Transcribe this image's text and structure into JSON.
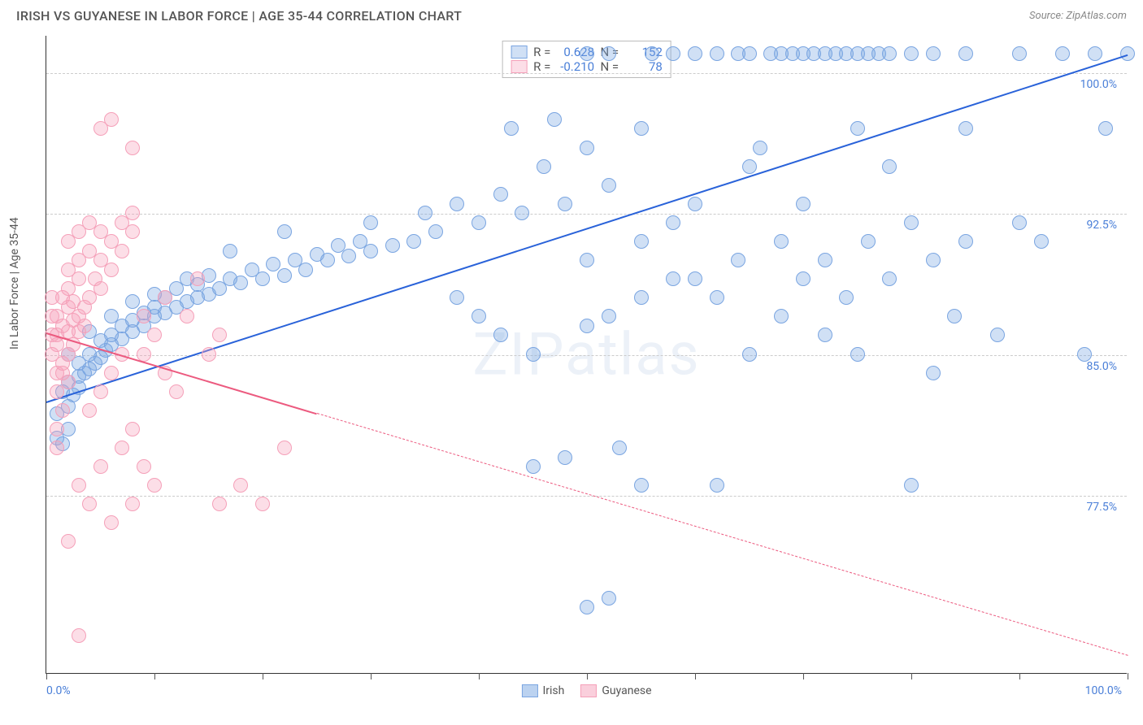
{
  "header": {
    "title": "IRISH VS GUYANESE IN LABOR FORCE | AGE 35-44 CORRELATION CHART",
    "source": "Source: ZipAtlas.com"
  },
  "watermark": "ZIPatlas",
  "ylabel": "In Labor Force | Age 35-44",
  "chart": {
    "type": "scatter",
    "xlim": [
      0,
      100
    ],
    "ylim": [
      68,
      102
    ],
    "ytick_labels": [
      "100.0%",
      "92.5%",
      "85.0%",
      "77.5%"
    ],
    "ytick_values": [
      100,
      92.5,
      85,
      77.5
    ],
    "xtick_values": [
      0,
      10,
      20,
      30,
      40,
      50,
      60,
      70,
      80,
      90,
      100
    ],
    "x_min_label": "0.0%",
    "x_max_label": "100.0%",
    "series": [
      {
        "name": "Irish",
        "color_fill": "rgba(120, 165, 225, 0.35)",
        "color_stroke": "#7aa5e1",
        "line_color": "#2962d9",
        "r_value": "0.628",
        "n_value": "152",
        "trend": {
          "x1": 0,
          "y1": 82.5,
          "x2": 100,
          "y2": 101,
          "dash_from": 100
        },
        "points": [
          [
            1,
            80.5
          ],
          [
            1.5,
            80.2
          ],
          [
            2,
            81
          ],
          [
            1,
            81.8
          ],
          [
            2,
            82.2
          ],
          [
            2.5,
            82.8
          ],
          [
            1.5,
            83
          ],
          [
            3,
            83.2
          ],
          [
            2,
            83.5
          ],
          [
            3,
            83.8
          ],
          [
            3.5,
            84
          ],
          [
            4,
            84.2
          ],
          [
            3,
            84.5
          ],
          [
            4.5,
            84.5
          ],
          [
            5,
            84.8
          ],
          [
            2,
            85
          ],
          [
            4,
            85
          ],
          [
            5.5,
            85.2
          ],
          [
            6,
            85.5
          ],
          [
            5,
            85.7
          ],
          [
            7,
            85.8
          ],
          [
            6,
            86
          ],
          [
            4,
            86.2
          ],
          [
            8,
            86.2
          ],
          [
            7,
            86.5
          ],
          [
            9,
            86.5
          ],
          [
            8,
            86.8
          ],
          [
            6,
            87
          ],
          [
            10,
            87
          ],
          [
            9,
            87.2
          ],
          [
            11,
            87.2
          ],
          [
            10,
            87.5
          ],
          [
            12,
            87.5
          ],
          [
            8,
            87.8
          ],
          [
            13,
            87.8
          ],
          [
            11,
            88
          ],
          [
            14,
            88
          ],
          [
            10,
            88.2
          ],
          [
            15,
            88.2
          ],
          [
            12,
            88.5
          ],
          [
            16,
            88.5
          ],
          [
            14,
            88.7
          ],
          [
            18,
            88.8
          ],
          [
            13,
            89
          ],
          [
            17,
            89
          ],
          [
            20,
            89
          ],
          [
            15,
            89.2
          ],
          [
            22,
            89.2
          ],
          [
            19,
            89.5
          ],
          [
            24,
            89.5
          ],
          [
            21,
            89.8
          ],
          [
            26,
            90
          ],
          [
            23,
            90
          ],
          [
            28,
            90.2
          ],
          [
            25,
            90.3
          ],
          [
            30,
            90.5
          ],
          [
            17,
            90.5
          ],
          [
            27,
            90.8
          ],
          [
            32,
            90.8
          ],
          [
            29,
            91
          ],
          [
            34,
            91
          ],
          [
            22,
            91.5
          ],
          [
            36,
            91.5
          ],
          [
            30,
            92
          ],
          [
            40,
            92
          ],
          [
            35,
            92.5
          ],
          [
            44,
            92.5
          ],
          [
            38,
            93
          ],
          [
            48,
            93
          ],
          [
            42,
            93.5
          ],
          [
            52,
            94
          ],
          [
            46,
            95
          ],
          [
            50,
            96
          ],
          [
            55,
            97
          ],
          [
            45,
            79
          ],
          [
            48,
            79.5
          ],
          [
            50,
            71.5
          ],
          [
            52,
            72
          ],
          [
            53,
            80
          ],
          [
            55,
            78
          ],
          [
            38,
            88
          ],
          [
            40,
            87
          ],
          [
            42,
            86
          ],
          [
            45,
            85
          ],
          [
            50,
            86.5
          ],
          [
            52,
            87
          ],
          [
            55,
            88
          ],
          [
            58,
            89
          ],
          [
            50,
            90
          ],
          [
            55,
            91
          ],
          [
            58,
            92
          ],
          [
            60,
            89
          ],
          [
            60,
            93
          ],
          [
            62,
            88
          ],
          [
            62,
            78
          ],
          [
            64,
            90
          ],
          [
            65,
            85
          ],
          [
            65,
            95
          ],
          [
            66,
            96
          ],
          [
            68,
            87
          ],
          [
            68,
            91
          ],
          [
            70,
            89
          ],
          [
            70,
            93
          ],
          [
            72,
            86
          ],
          [
            72,
            90
          ],
          [
            74,
            88
          ],
          [
            75,
            85
          ],
          [
            75,
            97
          ],
          [
            76,
            91
          ],
          [
            78,
            89
          ],
          [
            78,
            95
          ],
          [
            80,
            78
          ],
          [
            80,
            92
          ],
          [
            82,
            84
          ],
          [
            82,
            90
          ],
          [
            84,
            87
          ],
          [
            85,
            91
          ],
          [
            85,
            97
          ],
          [
            88,
            86
          ],
          [
            90,
            92
          ],
          [
            92,
            91
          ],
          [
            58,
            101
          ],
          [
            60,
            101
          ],
          [
            62,
            101
          ],
          [
            64,
            101
          ],
          [
            65,
            101
          ],
          [
            67,
            101
          ],
          [
            68,
            101
          ],
          [
            69,
            101
          ],
          [
            70,
            101
          ],
          [
            71,
            101
          ],
          [
            72,
            101
          ],
          [
            73,
            101
          ],
          [
            74,
            101
          ],
          [
            75,
            101
          ],
          [
            76,
            101
          ],
          [
            77,
            101
          ],
          [
            78,
            101
          ],
          [
            80,
            101
          ],
          [
            82,
            101
          ],
          [
            85,
            101
          ],
          [
            90,
            101
          ],
          [
            94,
            101
          ],
          [
            97,
            101
          ],
          [
            50,
            101
          ],
          [
            52,
            101
          ],
          [
            56,
            101
          ],
          [
            98,
            97
          ],
          [
            96,
            85
          ],
          [
            100,
            101
          ],
          [
            43,
            97
          ],
          [
            47,
            97.5
          ]
        ]
      },
      {
        "name": "Guyanese",
        "color_fill": "rgba(245, 160, 185, 0.35)",
        "color_stroke": "#f5a0b9",
        "line_color": "#ec5a7f",
        "r_value": "-0.210",
        "n_value": "78",
        "trend": {
          "x1": 0,
          "y1": 86.2,
          "x2": 100,
          "y2": 69,
          "dash_from": 25
        },
        "points": [
          [
            1,
            80
          ],
          [
            1,
            81
          ],
          [
            1.5,
            82
          ],
          [
            1,
            83
          ],
          [
            2,
            83.5
          ],
          [
            1,
            84
          ],
          [
            1.5,
            84.5
          ],
          [
            2,
            85
          ],
          [
            1,
            85.5
          ],
          [
            2.5,
            85.5
          ],
          [
            1,
            86
          ],
          [
            2,
            86.2
          ],
          [
            3,
            86.2
          ],
          [
            1.5,
            86.5
          ],
          [
            2.5,
            86.8
          ],
          [
            1,
            87
          ],
          [
            3,
            87
          ],
          [
            2,
            87.5
          ],
          [
            3.5,
            87.5
          ],
          [
            1.5,
            88
          ],
          [
            4,
            88
          ],
          [
            2,
            88.5
          ],
          [
            5,
            88.5
          ],
          [
            3,
            89
          ],
          [
            4.5,
            89
          ],
          [
            2,
            89.5
          ],
          [
            6,
            89.5
          ],
          [
            3,
            90
          ],
          [
            5,
            90
          ],
          [
            4,
            90.5
          ],
          [
            7,
            90.5
          ],
          [
            2,
            91
          ],
          [
            6,
            91
          ],
          [
            3,
            91.5
          ],
          [
            5,
            91.5
          ],
          [
            8,
            91.5
          ],
          [
            4,
            92
          ],
          [
            7,
            92
          ],
          [
            1.5,
            84
          ],
          [
            0.5,
            85
          ],
          [
            0.5,
            86
          ],
          [
            0.5,
            87
          ],
          [
            0.5,
            88
          ],
          [
            3,
            78
          ],
          [
            4,
            77
          ],
          [
            5,
            79
          ],
          [
            6,
            76
          ],
          [
            2,
            75
          ],
          [
            7,
            80
          ],
          [
            8,
            81
          ],
          [
            5,
            97
          ],
          [
            6,
            97.5
          ],
          [
            8,
            92.5
          ],
          [
            3,
            70
          ],
          [
            9,
            85
          ],
          [
            10,
            86
          ],
          [
            11,
            84
          ],
          [
            12,
            83
          ],
          [
            13,
            87
          ],
          [
            15,
            85
          ],
          [
            14,
            89
          ],
          [
            16,
            86
          ],
          [
            9,
            79
          ],
          [
            10,
            78
          ],
          [
            8,
            77
          ],
          [
            20,
            77
          ],
          [
            18,
            78
          ],
          [
            22,
            80
          ],
          [
            16,
            77
          ],
          [
            8,
            96
          ],
          [
            4,
            82
          ],
          [
            5,
            83
          ],
          [
            6,
            84
          ],
          [
            7,
            85
          ],
          [
            9,
            87
          ],
          [
            11,
            88
          ],
          [
            3.5,
            86.5
          ],
          [
            2.5,
            87.8
          ]
        ]
      }
    ]
  },
  "legend_bottom": [
    {
      "label": "Irish",
      "fill": "rgba(120, 165, 225, 0.5)",
      "stroke": "#7aa5e1"
    },
    {
      "label": "Guyanese",
      "fill": "rgba(245, 160, 185, 0.5)",
      "stroke": "#f5a0b9"
    }
  ]
}
